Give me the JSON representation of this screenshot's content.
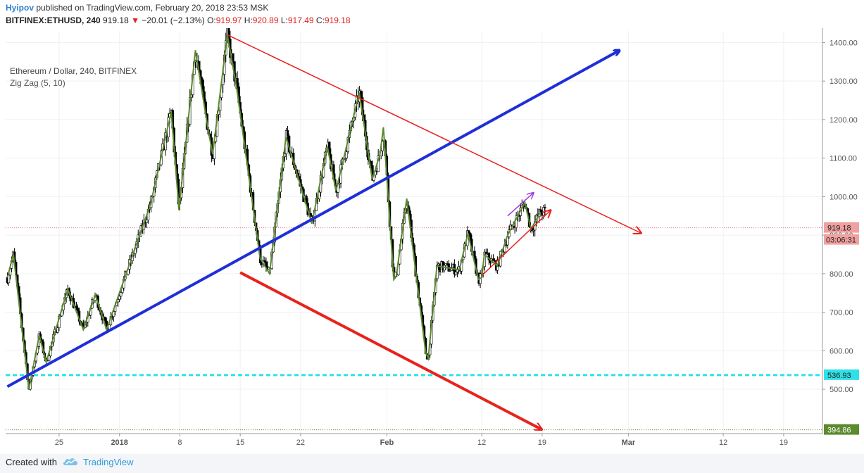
{
  "header": {
    "author": "Hyipov",
    "published_text": "published on TradingView.com, February 20, 2018 23:53 MSK",
    "symbol": "BITFINEX:ETHUSD, 240",
    "last": "919.18",
    "arrow": "▼",
    "change": "−20.01 (−2.13%)",
    "o_label": "O:",
    "o_value": "919.97",
    "h_label": "H:",
    "h_value": "920.89",
    "l_label": "L:",
    "l_value": "917.49",
    "c_label": "C:",
    "c_value": "919.18"
  },
  "legend": {
    "pair": "Ethereum / Dollar, 240, BITFINEX",
    "indicator": "Zig Zag (5, 10)"
  },
  "footer": {
    "created_with": "Created with",
    "brand": "TradingView"
  },
  "colors": {
    "up": "#ffffff",
    "down": "#000000",
    "zigzag": "#5b8a2f",
    "support_trend": "#1f2fd8",
    "resistance": "#e8221c",
    "arrow_purple": "#9c3ce0",
    "dashed": "#2fe0e8",
    "price_badge": "#f0a0a0",
    "low_badge": "#5b8a2f"
  },
  "chart_data": {
    "type": "candlestick",
    "symbol": "BITFINEX:ETHUSD",
    "interval": "240",
    "y_axis": {
      "ticks": [
        500,
        600,
        700,
        800,
        900,
        1000,
        1100,
        1200,
        1300,
        1400
      ],
      "labels": [
        "500.00",
        "600.00",
        "700.00",
        "800.00",
        "900.00",
        "1000.00",
        "1100.00",
        "1200.00",
        "1300.00",
        "1400.00"
      ]
    },
    "x_axis": {
      "ticks": [
        {
          "label": "25",
          "day": 25
        },
        {
          "label": "2018",
          "day": 32
        },
        {
          "label": "8",
          "day": 39
        },
        {
          "label": "15",
          "day": 46
        },
        {
          "label": "22",
          "day": 53
        },
        {
          "label": "Feb",
          "day": 63
        },
        {
          "label": "12",
          "day": 74
        },
        {
          "label": "19",
          "day": 81
        },
        {
          "label": "Mar",
          "day": 91
        },
        {
          "label": "12",
          "day": 102
        },
        {
          "label": "19",
          "day": 109
        }
      ]
    },
    "current_price": {
      "value": 919.18,
      "label": "919.18",
      "countdown": "03:06:31"
    },
    "horizontal_lines": [
      {
        "value": 536.93,
        "label": "536.93",
        "style": "dashed"
      },
      {
        "value": 394.86,
        "label": "394.86",
        "style": "dotted"
      }
    ],
    "zigzag": [
      [
        19.0,
        790
      ],
      [
        19.7,
        850
      ],
      [
        21.5,
        500
      ],
      [
        22.7,
        640
      ],
      [
        23.5,
        570
      ],
      [
        26.0,
        760
      ],
      [
        27.8,
        655
      ],
      [
        29.2,
        745
      ],
      [
        30.5,
        655
      ],
      [
        35.6,
        980
      ],
      [
        38.0,
        1220
      ],
      [
        38.9,
        965
      ],
      [
        40.8,
        1380
      ],
      [
        42.2,
        1185
      ],
      [
        42.8,
        1110
      ],
      [
        44.5,
        1420
      ],
      [
        45.6,
        1280
      ],
      [
        48.3,
        840
      ],
      [
        49.4,
        800
      ],
      [
        51.3,
        1155
      ],
      [
        54.3,
        930
      ],
      [
        56.1,
        1130
      ],
      [
        57.1,
        1015
      ],
      [
        59.8,
        1270
      ],
      [
        61.3,
        1045
      ],
      [
        62.2,
        1110
      ],
      [
        62.6,
        1180
      ],
      [
        63.8,
        785
      ],
      [
        64.1,
        795
      ],
      [
        65.3,
        995
      ],
      [
        67.5,
        595
      ],
      [
        67.8,
        580
      ],
      [
        68.8,
        820
      ],
      [
        71.4,
        810
      ],
      [
        72.4,
        905
      ],
      [
        73.6,
        785
      ],
      [
        74.0,
        790
      ],
      [
        74.3,
        850
      ],
      [
        75.8,
        820
      ],
      [
        77.0,
        900
      ],
      [
        79.0,
        985
      ],
      [
        79.7,
        915
      ],
      [
        80.8,
        960
      ]
    ],
    "trendlines": [
      {
        "name": "blue-support",
        "color": "support_trend",
        "from": [
          19.0,
          507
        ],
        "to": [
          90.0,
          1380
        ],
        "arrow": true
      },
      {
        "name": "red-resistance-upper",
        "color": "resistance",
        "from": [
          44.5,
          1420
        ],
        "to": [
          92.5,
          905
        ],
        "arrow": true
      },
      {
        "name": "red-lower-channel",
        "color": "resistance",
        "from": [
          46.0,
          803
        ],
        "to": [
          81.0,
          395
        ],
        "arrow": true
      },
      {
        "name": "red-small-up",
        "color": "resistance",
        "from": [
          74.0,
          795
        ],
        "to": [
          82.0,
          965
        ],
        "arrow": true
      },
      {
        "name": "purple-small-up",
        "color": "arrow_purple",
        "from": [
          77.0,
          950
        ],
        "to": [
          80.0,
          1010
        ],
        "arrow": true
      }
    ],
    "x_domain": [
      18.8,
      113.5
    ],
    "y_domain": [
      385,
      1430
    ]
  }
}
